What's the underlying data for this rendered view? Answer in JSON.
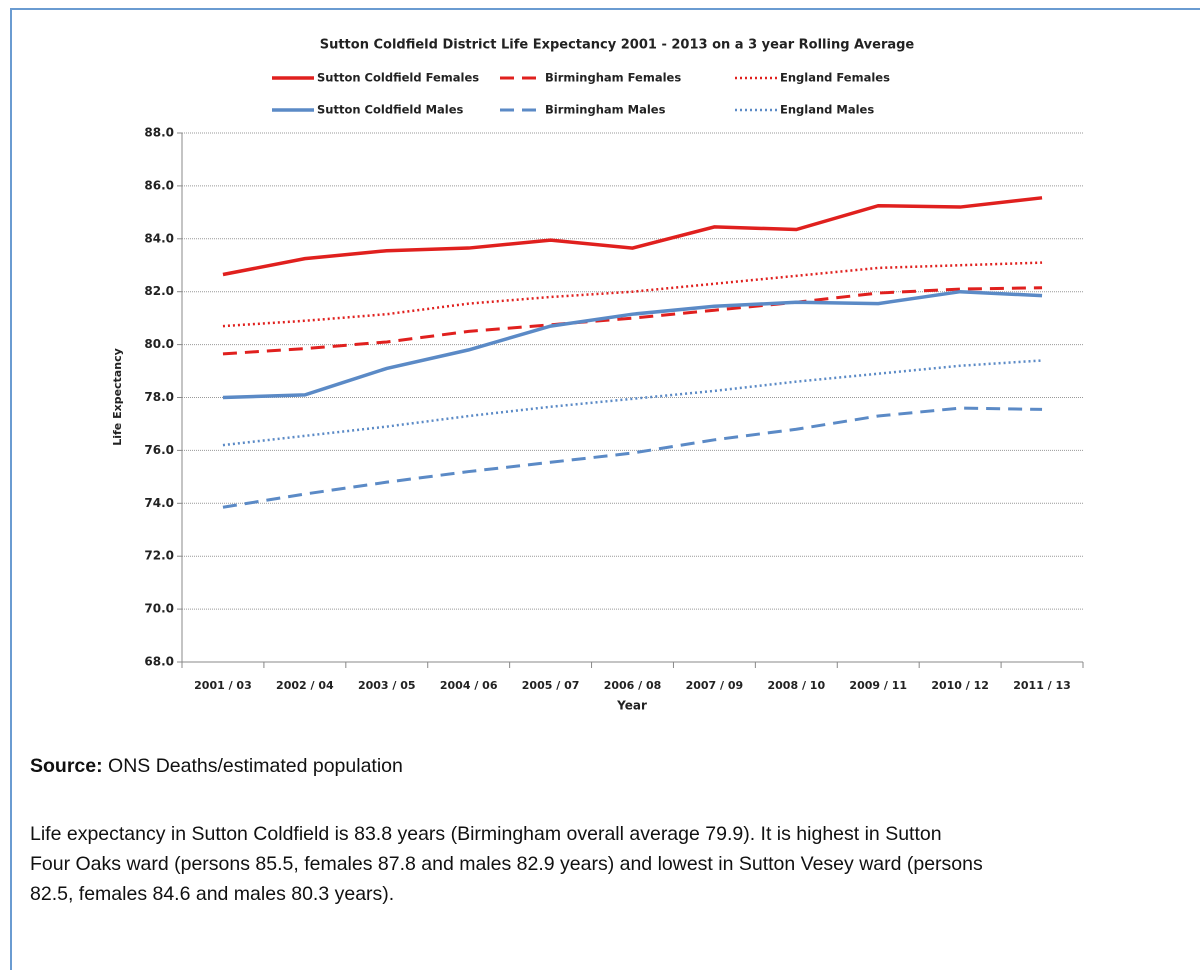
{
  "chart_data": {
    "type": "line",
    "title": "Sutton Coldfield District Life Expectancy 2001 - 2013 on a 3 year Rolling Average",
    "x_label": "Year",
    "y_label": "Life Expectancy",
    "categories": [
      "2001 / 03",
      "2002 / 04",
      "2003 / 05",
      "2004 / 06",
      "2005 / 07",
      "2006 / 08",
      "2007 / 09",
      "2008 / 10",
      "2009 / 11",
      "2010 / 12",
      "2011 / 13"
    ],
    "series": [
      {
        "name": "Sutton Coldfield Females",
        "color": "#e0201e",
        "dash": "solid",
        "values": [
          82.65,
          83.25,
          83.55,
          83.65,
          83.95,
          83.65,
          84.45,
          84.35,
          85.25,
          85.2,
          85.55
        ]
      },
      {
        "name": "Birmingham Females",
        "color": "#e0201e",
        "dash": "dashed",
        "values": [
          79.65,
          79.85,
          80.1,
          80.5,
          80.75,
          81.0,
          81.3,
          81.6,
          81.95,
          82.1,
          82.15
        ]
      },
      {
        "name": "England Females",
        "color": "#e0201e",
        "dash": "dotted",
        "values": [
          80.7,
          80.9,
          81.15,
          81.55,
          81.8,
          82.0,
          82.3,
          82.6,
          82.9,
          83.0,
          83.1
        ]
      },
      {
        "name": "Sutton Coldfield Males",
        "color": "#5b8ac6",
        "dash": "solid",
        "values": [
          78.0,
          78.1,
          79.1,
          79.8,
          80.7,
          81.15,
          81.45,
          81.6,
          81.55,
          82.0,
          81.85
        ]
      },
      {
        "name": "Birmingham Males",
        "color": "#5b8ac6",
        "dash": "dashed",
        "values": [
          73.85,
          74.35,
          74.8,
          75.2,
          75.55,
          75.9,
          76.4,
          76.8,
          77.3,
          77.6,
          77.55
        ]
      },
      {
        "name": "England Males",
        "color": "#5b8ac6",
        "dash": "dotted",
        "values": [
          76.2,
          76.55,
          76.9,
          77.3,
          77.65,
          77.95,
          78.25,
          78.6,
          78.9,
          79.2,
          79.4
        ]
      }
    ],
    "ylim": [
      68,
      88
    ],
    "yticks": [
      {
        "value": 68,
        "label": "68.0"
      },
      {
        "value": 70,
        "label": "70.0"
      },
      {
        "value": 72,
        "label": "72.0"
      },
      {
        "value": 74,
        "label": "74.0"
      },
      {
        "value": 76,
        "label": "76.0"
      },
      {
        "value": 78,
        "label": "78.0"
      },
      {
        "value": 80,
        "label": "80.0"
      },
      {
        "value": 82,
        "label": "82.0"
      },
      {
        "value": 84,
        "label": "84.0"
      },
      {
        "value": 86,
        "label": "86.0"
      },
      {
        "value": 88,
        "label": "88.0"
      }
    ],
    "grid": true,
    "legend": "top"
  },
  "source": {
    "label": "Source:",
    "text": " ONS Deaths/estimated population"
  },
  "paragraph": [
    "Life expectancy in Sutton Coldfield is 83.8 years (Birmingham overall average 79.9).  It is highest in Sutton",
    "Four Oaks ward (persons 85.5, females 87.8 and males 82.9 years) and lowest in Sutton Vesey ward (persons",
    "82.5, females 84.6 and males 80.3 years)."
  ]
}
